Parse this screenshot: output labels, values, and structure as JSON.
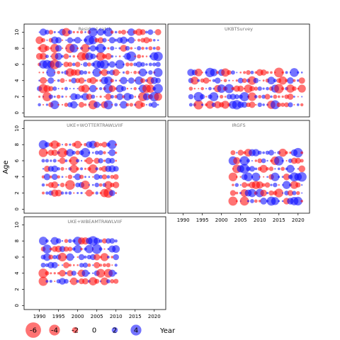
{
  "chart_data": {
    "type": "scatter",
    "subtype": "bubble-residuals",
    "ylabel": "Age",
    "xlabel": "Year",
    "xlim": [
      1986,
      2023
    ],
    "ylim": [
      -0.5,
      11
    ],
    "x_ticks": [
      1990,
      1995,
      2000,
      2005,
      2010,
      2015,
      2020
    ],
    "y_ticks": [
      0,
      2,
      4,
      6,
      8,
      10
    ],
    "colors": {
      "positive": "#0000ff",
      "negative": "#ff0000",
      "alpha": 0.55
    },
    "panels": [
      {
        "title": "Residual catch",
        "years": [
          1990,
          2021
        ],
        "ages": [
          1,
          10
        ]
      },
      {
        "title": "UKBTSurvey",
        "years": [
          1992,
          2021
        ],
        "ages": [
          1,
          5
        ]
      },
      {
        "title": "UKE+WOTTERTRAWLVIIF",
        "years": [
          1991,
          2010
        ],
        "ages": [
          2,
          8
        ]
      },
      {
        "title": "IRGFS",
        "years": [
          2003,
          2021
        ],
        "ages": [
          1,
          7
        ]
      },
      {
        "title": "UKE+WBEAMTRAWLVIIF",
        "years": [
          1991,
          2010
        ],
        "ages": [
          3,
          8
        ]
      }
    ],
    "legend": {
      "values": [
        -6,
        -4,
        -2,
        0,
        2,
        4
      ],
      "labels": [
        "-6",
        "-4",
        "-2",
        "0",
        "2",
        "4"
      ]
    }
  }
}
